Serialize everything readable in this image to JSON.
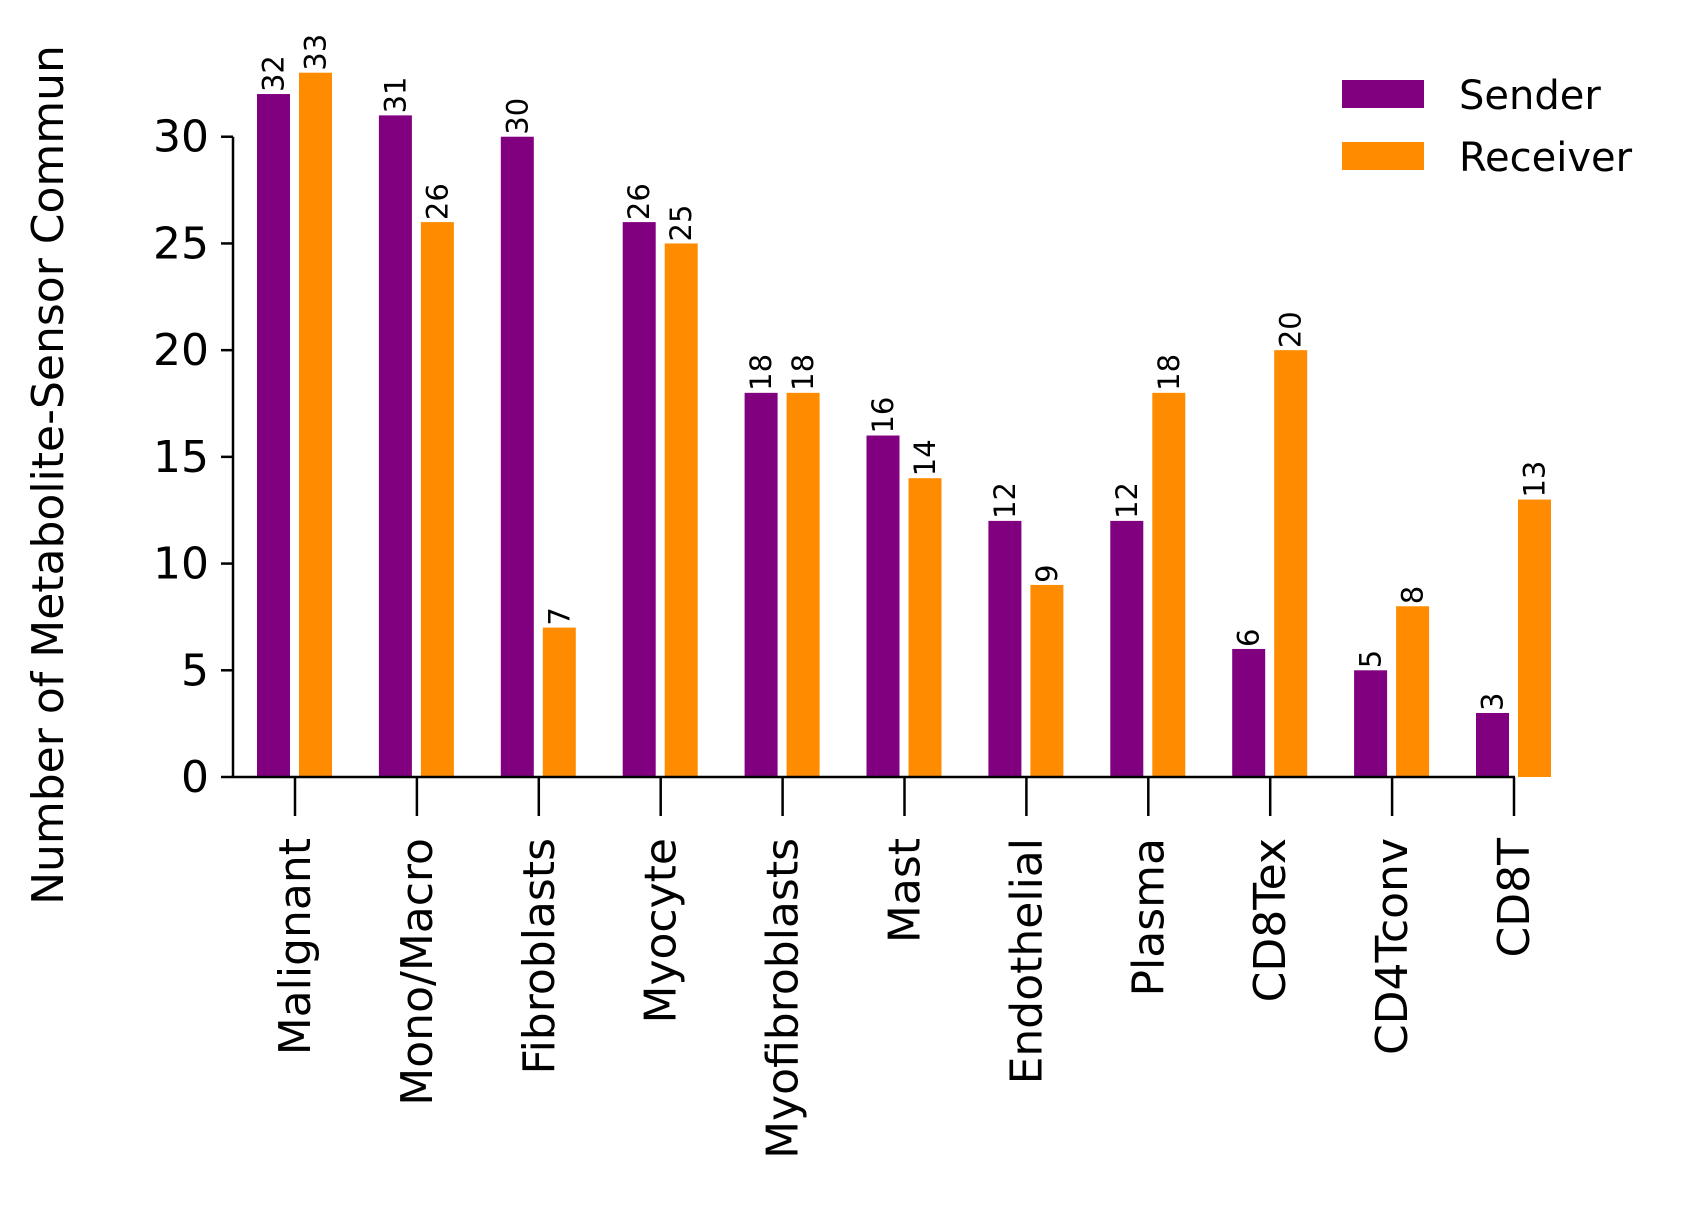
{
  "chart_data": {
    "type": "bar",
    "title": "",
    "xlabel": "",
    "ylabel": "Number of Metabolite-Sensor Commun",
    "categories": [
      "Malignant",
      "Mono/Macro",
      "Fibroblasts",
      "Myocyte",
      "Myofibroblasts",
      "Mast",
      "Endothelial",
      "Plasma",
      "CD8Tex",
      "CD4Tconv",
      "CD8T"
    ],
    "series": [
      {
        "name": "Sender",
        "color": "#800080",
        "values": [
          32,
          31,
          30,
          26,
          18,
          16,
          12,
          12,
          6,
          5,
          3
        ]
      },
      {
        "name": "Receiver",
        "color": "#ff8c00",
        "values": [
          33,
          26,
          7,
          25,
          18,
          14,
          9,
          18,
          20,
          8,
          13
        ]
      }
    ],
    "ylim": [
      0,
      33
    ],
    "yticks": [
      0,
      5,
      10,
      15,
      20,
      25,
      30
    ],
    "grid": false,
    "legend_position": "top-right",
    "data_labels": true
  }
}
